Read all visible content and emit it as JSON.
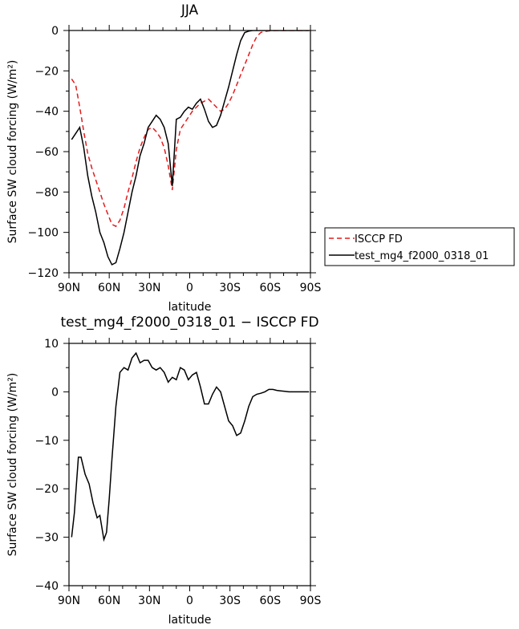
{
  "chart_data": [
    {
      "type": "line",
      "title": "JJA",
      "xlabel": "latitude",
      "ylabel": "Surface SW cloud forcing (W/m²)",
      "xlim": [
        90,
        -90
      ],
      "ylim": [
        -120,
        0
      ],
      "xticks": [
        {
          "value": 90,
          "label": "90N"
        },
        {
          "value": 60,
          "label": "60N"
        },
        {
          "value": 30,
          "label": "30N"
        },
        {
          "value": 0,
          "label": "0"
        },
        {
          "value": -30,
          "label": "30S"
        },
        {
          "value": -60,
          "label": "60S"
        },
        {
          "value": -90,
          "label": "90S"
        }
      ],
      "yticks": [
        0,
        -20,
        -40,
        -60,
        -80,
        -100,
        -120
      ],
      "legend_position": "right",
      "series": [
        {
          "name": "ISCCP FD",
          "color": "#e41a1c",
          "dash": "dashed",
          "x": [
            88,
            85,
            82,
            79,
            76,
            73,
            70,
            67,
            64,
            61,
            58,
            55,
            52,
            49,
            46,
            43,
            40,
            37,
            34,
            31,
            28,
            25,
            22,
            19,
            16,
            13,
            10,
            7,
            4,
            1,
            -2,
            -5,
            -8,
            -11,
            -14,
            -17,
            -20,
            -23,
            -26,
            -29,
            -32,
            -35,
            -38,
            -41,
            -44,
            -47,
            -50,
            -53,
            -56,
            -59,
            -62,
            -65,
            -68,
            -71,
            -74,
            -77,
            -80,
            -83,
            -86,
            -89
          ],
          "y": [
            -24,
            -27,
            -38,
            -50,
            -61,
            -68,
            -74,
            -80,
            -86,
            -91,
            -96,
            -97,
            -94,
            -88,
            -80,
            -73,
            -65,
            -58,
            -53,
            -49,
            -48,
            -50,
            -53,
            -58,
            -67,
            -79,
            -59,
            -49,
            -46,
            -43,
            -40,
            -38,
            -36,
            -35,
            -34,
            -36,
            -38,
            -40,
            -39,
            -36,
            -32,
            -27,
            -22,
            -17,
            -12,
            -7,
            -3,
            -1,
            -0.5,
            -0.2,
            -0.1,
            0,
            0,
            0,
            0,
            0,
            0,
            0,
            0,
            0
          ]
        },
        {
          "name": "test_mg4_f2000_0318_01",
          "color": "#000000",
          "dash": "solid",
          "x": [
            88,
            85,
            82,
            79,
            76,
            73,
            70,
            67,
            64,
            61,
            58,
            55,
            52,
            49,
            46,
            43,
            40,
            37,
            34,
            31,
            28,
            25,
            22,
            19,
            16,
            13,
            10,
            7,
            4,
            1,
            -2,
            -5,
            -8,
            -11,
            -14,
            -17,
            -20,
            -23,
            -26,
            -29,
            -32,
            -35,
            -38,
            -41,
            -44,
            -47,
            -50,
            -53,
            -56,
            -59,
            -62,
            -65,
            -68,
            -71,
            -74,
            -77,
            -80,
            -83,
            -86,
            -89
          ],
          "y": [
            -54,
            -51,
            -48,
            -58,
            -72,
            -82,
            -90,
            -100,
            -105,
            -112,
            -116,
            -115,
            -108,
            -100,
            -90,
            -80,
            -72,
            -62,
            -56,
            -48,
            -45,
            -42,
            -44,
            -48,
            -56,
            -77,
            -44,
            -43,
            -40,
            -38,
            -39,
            -36,
            -34,
            -39,
            -45,
            -48,
            -47,
            -42,
            -35,
            -28,
            -20,
            -12,
            -5,
            -1,
            -0.3,
            0,
            0,
            0,
            0,
            0,
            0,
            0,
            0,
            0,
            0,
            0,
            0,
            0,
            0,
            0
          ]
        }
      ]
    },
    {
      "type": "line",
      "title": "test_mg4_f2000_0318_01 − ISCCP FD",
      "xlabel": "latitude",
      "ylabel": "Surface SW cloud forcing (W/m²)",
      "xlim": [
        90,
        -90
      ],
      "ylim": [
        -40,
        10
      ],
      "xticks": [
        {
          "value": 90,
          "label": "90N"
        },
        {
          "value": 60,
          "label": "60N"
        },
        {
          "value": 30,
          "label": "30N"
        },
        {
          "value": 0,
          "label": "0"
        },
        {
          "value": -30,
          "label": "30S"
        },
        {
          "value": -60,
          "label": "60S"
        },
        {
          "value": -90,
          "label": "90S"
        }
      ],
      "yticks": [
        10,
        0,
        -10,
        -20,
        -30,
        -40
      ],
      "series": [
        {
          "color": "#000000",
          "dash": "solid",
          "x": [
            88,
            86,
            83,
            81,
            78,
            75,
            72,
            69,
            67,
            64,
            62,
            60,
            58,
            55,
            52,
            49,
            46,
            43,
            40,
            37,
            34,
            31,
            28,
            25,
            22,
            19,
            16,
            13,
            10,
            7,
            4,
            1,
            -2,
            -5,
            -8,
            -11,
            -14,
            -17,
            -20,
            -23,
            -26,
            -29,
            -32,
            -35,
            -38,
            -41,
            -44,
            -47,
            -50,
            -53,
            -56,
            -59,
            -62,
            -65,
            -68,
            -71,
            -74,
            -77,
            -80,
            -83,
            -86,
            -89
          ],
          "y": [
            -30,
            -25,
            -13.5,
            -13.5,
            -17,
            -19,
            -23,
            -26,
            -25.5,
            -30.5,
            -29,
            -22,
            -14,
            -3,
            4,
            5,
            4.5,
            7,
            8,
            6,
            6.5,
            6.5,
            5,
            4.5,
            5,
            4,
            2,
            3,
            2.5,
            5,
            4.5,
            2.5,
            3.5,
            4,
            1,
            -2.5,
            -2.5,
            -0.5,
            1,
            0,
            -3,
            -6,
            -7,
            -9,
            -8.5,
            -6,
            -3,
            -1,
            -0.5,
            -0.3,
            0,
            0.5,
            0.5,
            0.3,
            0.2,
            0.1,
            0,
            0,
            0,
            0,
            0,
            0
          ]
        }
      ]
    }
  ]
}
